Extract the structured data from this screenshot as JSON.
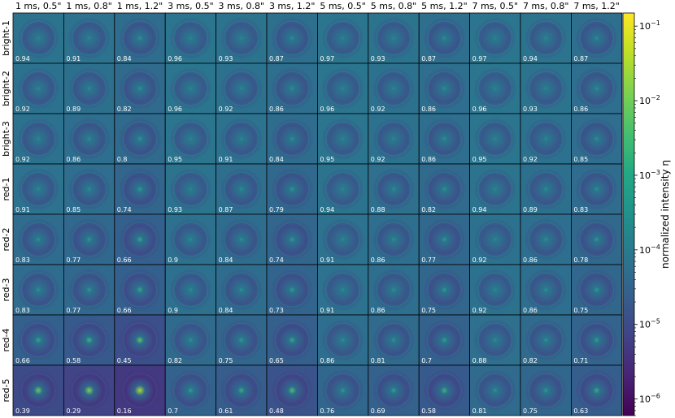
{
  "chart_data": {
    "type": "heatmap",
    "columns": [
      "1 ms, 0.5\"",
      "1 ms, 0.8\"",
      "1 ms, 1.2\"",
      "3 ms, 0.5\"",
      "3 ms, 0.8\"",
      "3 ms, 1.2\"",
      "5 ms, 0.5\"",
      "5 ms, 0.8\"",
      "5 ms, 1.2\"",
      "7 ms, 0.5\"",
      "7 ms, 0.8\"",
      "7 ms, 1.2\""
    ],
    "rows": [
      "bright-1",
      "bright-2",
      "bright-3",
      "red-1",
      "red-2",
      "red-3",
      "red-4",
      "red-5"
    ],
    "values": [
      [
        "0.94",
        "0.91",
        "0.84",
        "0.96",
        "0.93",
        "0.87",
        "0.97",
        "0.93",
        "0.87",
        "0.97",
        "0.94",
        "0.87"
      ],
      [
        "0.92",
        "0.89",
        "0.82",
        "0.96",
        "0.92",
        "0.86",
        "0.96",
        "0.92",
        "0.86",
        "0.96",
        "0.93",
        "0.86"
      ],
      [
        "0.92",
        "0.86",
        "0.8",
        "0.95",
        "0.91",
        "0.84",
        "0.95",
        "0.92",
        "0.86",
        "0.95",
        "0.92",
        "0.85"
      ],
      [
        "0.91",
        "0.85",
        "0.74",
        "0.93",
        "0.87",
        "0.79",
        "0.94",
        "0.88",
        "0.82",
        "0.94",
        "0.89",
        "0.83"
      ],
      [
        "0.83",
        "0.77",
        "0.66",
        "0.9",
        "0.84",
        "0.74",
        "0.91",
        "0.86",
        "0.77",
        "0.92",
        "0.86",
        "0.78"
      ],
      [
        "0.83",
        "0.77",
        "0.66",
        "0.9",
        "0.84",
        "0.73",
        "0.91",
        "0.86",
        "0.75",
        "0.92",
        "0.86",
        "0.75"
      ],
      [
        "0.66",
        "0.58",
        "0.45",
        "0.82",
        "0.75",
        "0.65",
        "0.86",
        "0.81",
        "0.7",
        "0.88",
        "0.82",
        "0.71"
      ],
      [
        "0.39",
        "0.29",
        "0.16",
        "0.7",
        "0.61",
        "0.48",
        "0.76",
        "0.69",
        "0.58",
        "0.81",
        "0.75",
        "0.63"
      ]
    ],
    "colorbar": {
      "label": "normalized intensity η",
      "scale": "log",
      "range": [
        6e-07,
        0.15
      ],
      "ticks": [
        {
          "value": 0.1,
          "base": "10",
          "exp": "−1"
        },
        {
          "value": 0.01,
          "base": "10",
          "exp": "−2"
        },
        {
          "value": 0.001,
          "base": "10",
          "exp": "−3"
        },
        {
          "value": 0.0001,
          "base": "10",
          "exp": "−4"
        },
        {
          "value": 1e-05,
          "base": "10",
          "exp": "−5"
        },
        {
          "value": 1e-06,
          "base": "10",
          "exp": "−6"
        }
      ],
      "colormap": "viridis"
    }
  }
}
